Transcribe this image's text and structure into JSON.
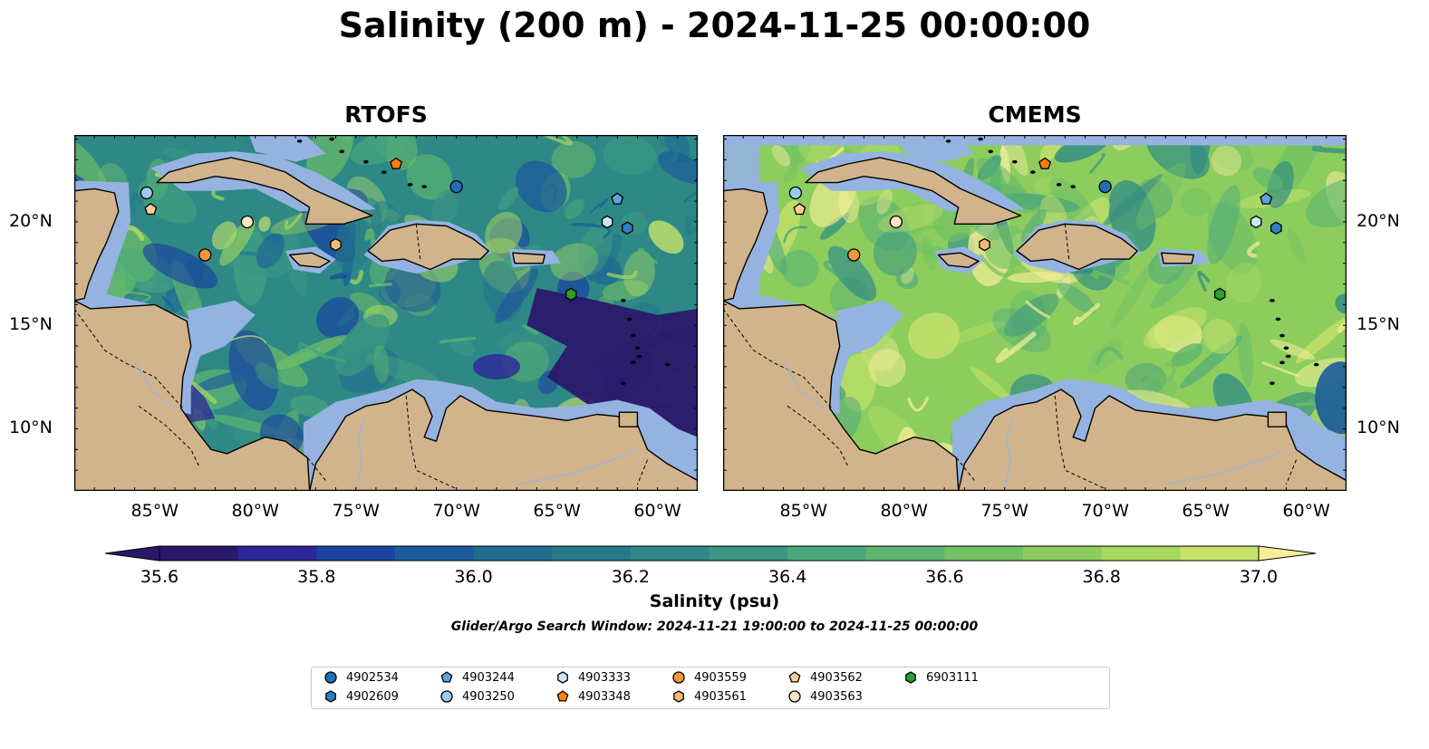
{
  "title": "Salinity (200 m) - 2024-11-25 00:00:00",
  "panels": [
    {
      "title": "RTOFS",
      "model": "rtofs"
    },
    {
      "title": "CMEMS",
      "model": "cmems"
    }
  ],
  "map_extent": {
    "lon": [
      -89,
      -58
    ],
    "lat": [
      7,
      24.2
    ]
  },
  "axes": {
    "lon_ticks": [
      -85,
      -80,
      -75,
      -70,
      -65,
      -60
    ],
    "lon_labels": [
      "85°W",
      "80°W",
      "75°W",
      "70°W",
      "65°W",
      "60°W"
    ],
    "lat_ticks": [
      10,
      15,
      20
    ],
    "lat_labels": [
      "10°N",
      "15°N",
      "20°N"
    ]
  },
  "colorbar": {
    "label": "Salinity (psu)",
    "min": 35.6,
    "max": 37.0,
    "step": 0.1,
    "ticks": [
      35.6,
      35.8,
      36.0,
      36.2,
      36.4,
      36.6,
      36.8,
      37.0
    ],
    "tick_labels": [
      "35.6",
      "35.8",
      "36.0",
      "36.2",
      "36.4",
      "36.6",
      "36.8",
      "37.0"
    ],
    "colors": [
      "#2a186c",
      "#2d2599",
      "#1a44a0",
      "#1b5b9c",
      "#1f6c8f",
      "#247a8a",
      "#2e8986",
      "#3a9783",
      "#4aa77d",
      "#5db570",
      "#72c163",
      "#8ccd5e",
      "#a8d85f",
      "#c6e26a",
      "#f8ee9a"
    ]
  },
  "search_window": "Glider/Argo Search Window: 2024-11-21 19:00:00 to 2024-11-25 00:00:00",
  "colors": {
    "land": "#d2b48c",
    "shelf": "#94b3e0",
    "deep": "#2a186c"
  },
  "platforms": [
    {
      "id": "4902534",
      "marker": "circle",
      "color": "#1f6fb4",
      "lon": -70.0,
      "lat": 21.7
    },
    {
      "id": "4902609",
      "marker": "hexagon",
      "color": "#2f80c8",
      "lon": -61.5,
      "lat": 19.7
    },
    {
      "id": "4903244",
      "marker": "pentagon",
      "color": "#5ba3e0",
      "lon": -62.0,
      "lat": 21.1
    },
    {
      "id": "4903250",
      "marker": "circle",
      "color": "#9ecaf0",
      "lon": -85.4,
      "lat": 21.4
    },
    {
      "id": "4903333",
      "marker": "hexagon",
      "color": "#cde6f7",
      "lon": -62.5,
      "lat": 20.0
    },
    {
      "id": "4903348",
      "marker": "pentagon",
      "color": "#ff7f0e",
      "lon": -73.0,
      "lat": 22.8
    },
    {
      "id": "4903559",
      "marker": "circle",
      "color": "#f5963a",
      "lon": -82.5,
      "lat": 18.4
    },
    {
      "id": "4903561",
      "marker": "hexagon",
      "color": "#f9b877",
      "lon": -76.0,
      "lat": 18.9
    },
    {
      "id": "4903562",
      "marker": "pentagon",
      "color": "#fbcd98",
      "lon": -85.2,
      "lat": 20.6
    },
    {
      "id": "4903563",
      "marker": "circle",
      "color": "#fde5c6",
      "lon": -80.4,
      "lat": 20.0
    },
    {
      "id": "6903111",
      "marker": "hexagon",
      "color": "#2ca02c",
      "lon": -64.3,
      "lat": 16.5
    }
  ]
}
